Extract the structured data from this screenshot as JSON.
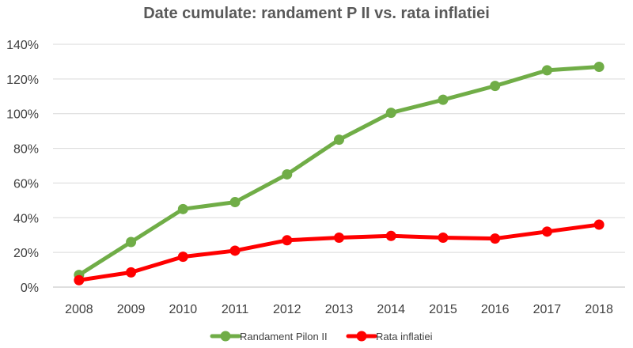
{
  "chart_data": {
    "type": "line",
    "title": "Date cumulate: randament P II vs. rata inflatiei",
    "xlabel": "",
    "ylabel": "",
    "categories": [
      "2008",
      "2009",
      "2010",
      "2011",
      "2012",
      "2013",
      "2014",
      "2015",
      "2016",
      "2017",
      "2018"
    ],
    "ylim": [
      0,
      140
    ],
    "yticks": [
      0,
      20,
      40,
      60,
      80,
      100,
      120,
      140
    ],
    "ytick_labels": [
      "0%",
      "20%",
      "40%",
      "60%",
      "80%",
      "100%",
      "120%",
      "140%"
    ],
    "grid": "horizontal",
    "legend_position": "bottom",
    "series": [
      {
        "name": "Randament Pilon II",
        "color": "#70AD47",
        "values": [
          7,
          26,
          45,
          49,
          65,
          85,
          100.5,
          108,
          116,
          125,
          127
        ]
      },
      {
        "name": "Rata inflatiei",
        "color": "#FF0000",
        "values": [
          4,
          8.5,
          17.5,
          21,
          27,
          28.5,
          29.5,
          28.5,
          28,
          32,
          36
        ]
      }
    ]
  }
}
